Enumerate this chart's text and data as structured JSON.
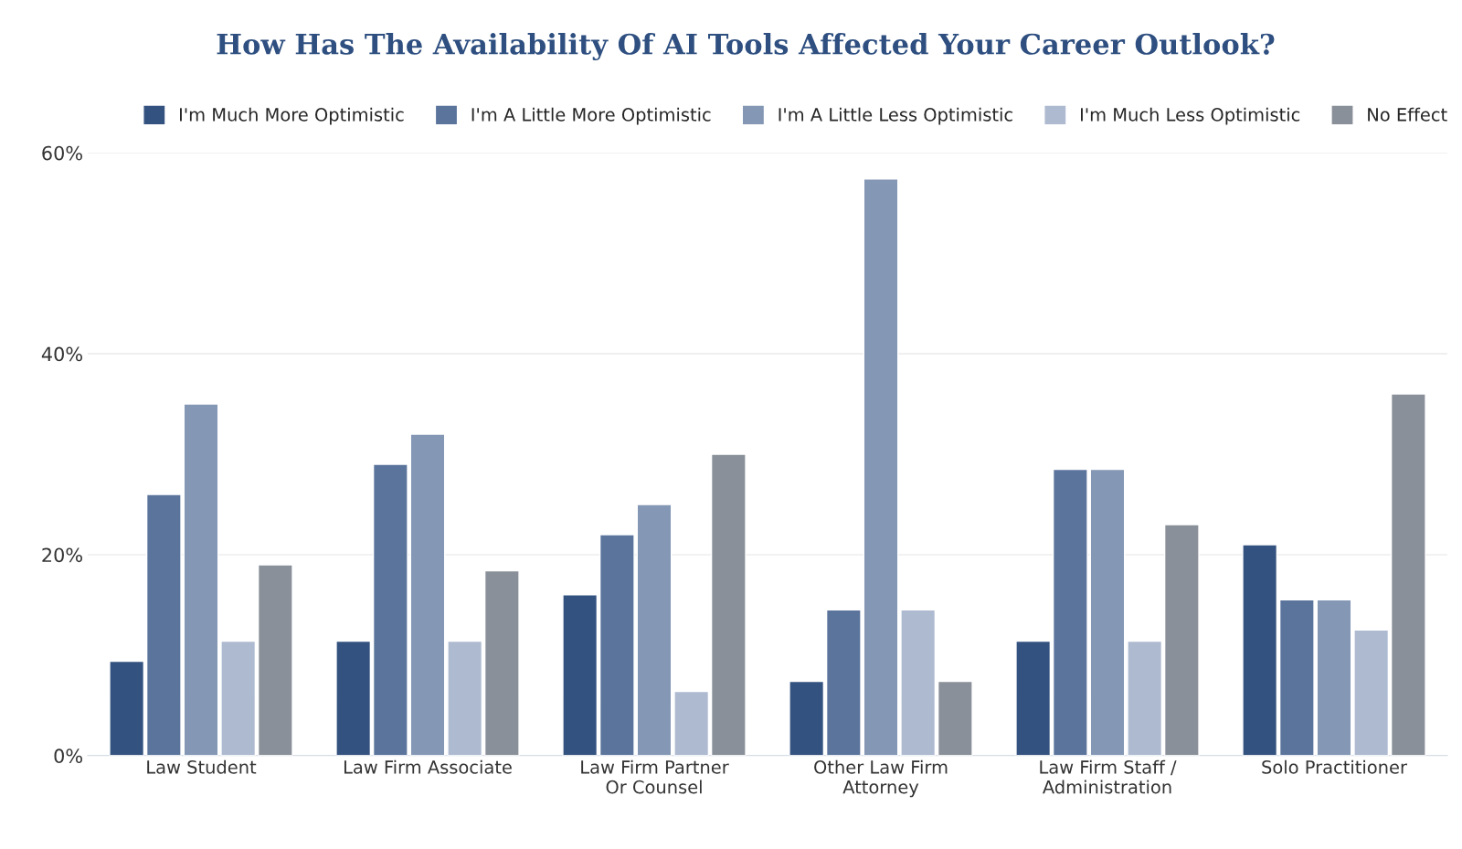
{
  "chart_data": {
    "type": "bar",
    "title": "How Has The Availability Of AI Tools Affected Your Career Outlook?",
    "categories": [
      "Law Student",
      "Law Firm Associate",
      "Law Firm Partner\nOr Counsel",
      "Other Law Firm\nAttorney",
      "Law Firm Staff /\nAdministration",
      "Solo Practitioner"
    ],
    "series": [
      {
        "name": "I'm Much More Optimistic",
        "color": "#34527f",
        "values": [
          9.4,
          11.4,
          16,
          7.4,
          11.4,
          21
        ]
      },
      {
        "name": "I'm A Little More Optimistic",
        "color": "#5b749c",
        "values": [
          26,
          29,
          22,
          14.5,
          28.5,
          15.5
        ]
      },
      {
        "name": "I'm A Little Less Optimistic",
        "color": "#8497b5",
        "values": [
          35,
          32,
          25,
          57.4,
          28.5,
          15.5
        ]
      },
      {
        "name": "I'm Much Less Optimistic",
        "color": "#aebad0",
        "values": [
          11.4,
          11.4,
          6.4,
          14.5,
          11.4,
          12.5
        ]
      },
      {
        "name": "No Effect",
        "color": "#8a9099",
        "values": [
          19,
          18.4,
          30,
          7.4,
          23,
          36
        ]
      }
    ],
    "ylim": [
      0,
      60
    ],
    "yticks": [
      {
        "value": 0,
        "label": "0%"
      },
      {
        "value": 20,
        "label": "20%"
      },
      {
        "value": 40,
        "label": "40%"
      },
      {
        "value": 60,
        "label": "60%"
      }
    ],
    "grid": "y",
    "legend": "top left"
  }
}
